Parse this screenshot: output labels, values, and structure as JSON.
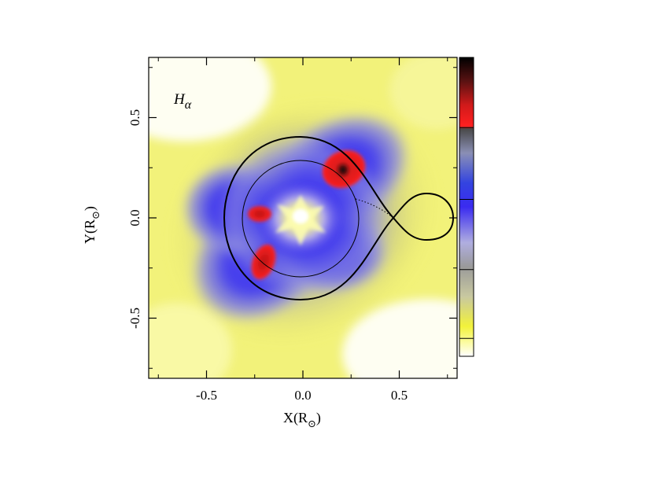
{
  "chart_data": {
    "type": "heatmap",
    "title": "",
    "panel_label": "H",
    "panel_label_sub": "α",
    "xlabel": "X(R",
    "ylabel": "Y(R",
    "label_unit_symbol": "⊙",
    "label_close": ")",
    "xlim": [
      -0.8,
      0.8
    ],
    "ylim": [
      -0.8,
      0.8
    ],
    "xticks": [
      -0.5,
      0.0,
      0.5
    ],
    "yticks": [
      -0.5,
      0.0,
      0.5
    ],
    "xtick_labels": [
      "-0.5",
      "0.0",
      "0.5"
    ],
    "ytick_labels": [
      "-0.5",
      "0.0",
      "0.5"
    ],
    "colorbar_stops": [
      {
        "pos": 0.0,
        "color": "#000000"
      },
      {
        "pos": 0.08,
        "color": "#5a1212"
      },
      {
        "pos": 0.16,
        "color": "#d11a1a"
      },
      {
        "pos": 0.23,
        "color": "#ff2020"
      },
      {
        "pos": 0.24,
        "color": "#4a4a4a"
      },
      {
        "pos": 0.32,
        "color": "#8a8fb5"
      },
      {
        "pos": 0.42,
        "color": "#3344e0"
      },
      {
        "pos": 0.5,
        "color": "#3a2bf0"
      },
      {
        "pos": 0.62,
        "color": "#b0aee0"
      },
      {
        "pos": 0.7,
        "color": "#9a9a9a"
      },
      {
        "pos": 0.8,
        "color": "#c8c8a0"
      },
      {
        "pos": 0.9,
        "color": "#f2f23a"
      },
      {
        "pos": 0.95,
        "color": "#fbfb9a"
      },
      {
        "pos": 1.0,
        "color": "#ffffff"
      }
    ],
    "colorbar_tick_fractions": [
      0.235,
      0.475,
      0.71,
      0.94
    ],
    "roche_lobe_primary_extent": {
      "xmin": -0.41,
      "xmax": 0.47,
      "ymin": -0.41,
      "ymax": 0.41
    },
    "inner_circle_radius": 0.29,
    "l1_point": [
      0.47,
      0.0
    ],
    "roche_lobe_secondary_extent": {
      "xmin": 0.47,
      "xmax": 0.77,
      "ymin": -0.1,
      "ymax": 0.1
    },
    "emission_hotspots": [
      {
        "x": 0.2,
        "y": 0.24,
        "peak": "black"
      },
      {
        "x": -0.22,
        "y": 0.03,
        "peak": "red"
      },
      {
        "x": -0.18,
        "y": -0.2,
        "peak": "red"
      }
    ]
  }
}
